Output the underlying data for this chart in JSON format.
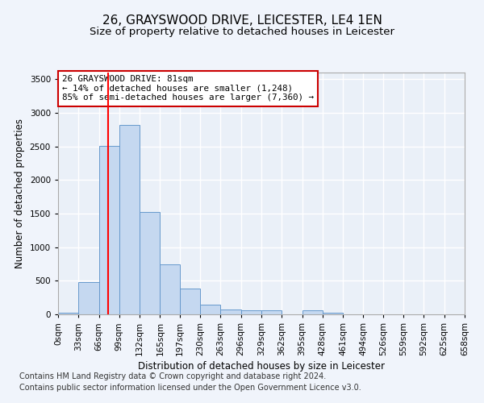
{
  "title_line1": "26, GRAYSWOOD DRIVE, LEICESTER, LE4 1EN",
  "title_line2": "Size of property relative to detached houses in Leicester",
  "xlabel": "Distribution of detached houses by size in Leicester",
  "ylabel": "Number of detached properties",
  "footnote1": "Contains HM Land Registry data © Crown copyright and database right 2024.",
  "footnote2": "Contains public sector information licensed under the Open Government Licence v3.0.",
  "annotation_line1": "26 GRAYSWOOD DRIVE: 81sqm",
  "annotation_line2": "← 14% of detached houses are smaller (1,248)",
  "annotation_line3": "85% of semi-detached houses are larger (7,360) →",
  "bar_edges": [
    0,
    33,
    66,
    99,
    132,
    165,
    197,
    230,
    263,
    296,
    329,
    362,
    395,
    428,
    461,
    494,
    526,
    559,
    592,
    625,
    658
  ],
  "bar_heights": [
    20,
    480,
    2510,
    2820,
    1520,
    750,
    390,
    145,
    75,
    55,
    55,
    0,
    55,
    20,
    0,
    0,
    0,
    0,
    0,
    0
  ],
  "bar_color": "#c5d8f0",
  "bar_edge_color": "#6699cc",
  "red_line_x": 81,
  "ylim": [
    0,
    3600
  ],
  "yticks": [
    0,
    500,
    1000,
    1500,
    2000,
    2500,
    3000,
    3500
  ],
  "xtick_labels": [
    "0sqm",
    "33sqm",
    "66sqm",
    "99sqm",
    "132sqm",
    "165sqm",
    "197sqm",
    "230sqm",
    "263sqm",
    "296sqm",
    "329sqm",
    "362sqm",
    "395sqm",
    "428sqm",
    "461sqm",
    "494sqm",
    "526sqm",
    "559sqm",
    "592sqm",
    "625sqm",
    "658sqm"
  ],
  "background_color": "#eaf0f8",
  "fig_background_color": "#f0f4fb",
  "grid_color": "#ffffff",
  "annotation_box_color": "#ffffff",
  "annotation_box_edgecolor": "#cc0000",
  "title_fontsize": 11,
  "subtitle_fontsize": 9.5,
  "axis_label_fontsize": 8.5,
  "tick_fontsize": 7.5,
  "annotation_fontsize": 7.8,
  "footnote_fontsize": 7
}
